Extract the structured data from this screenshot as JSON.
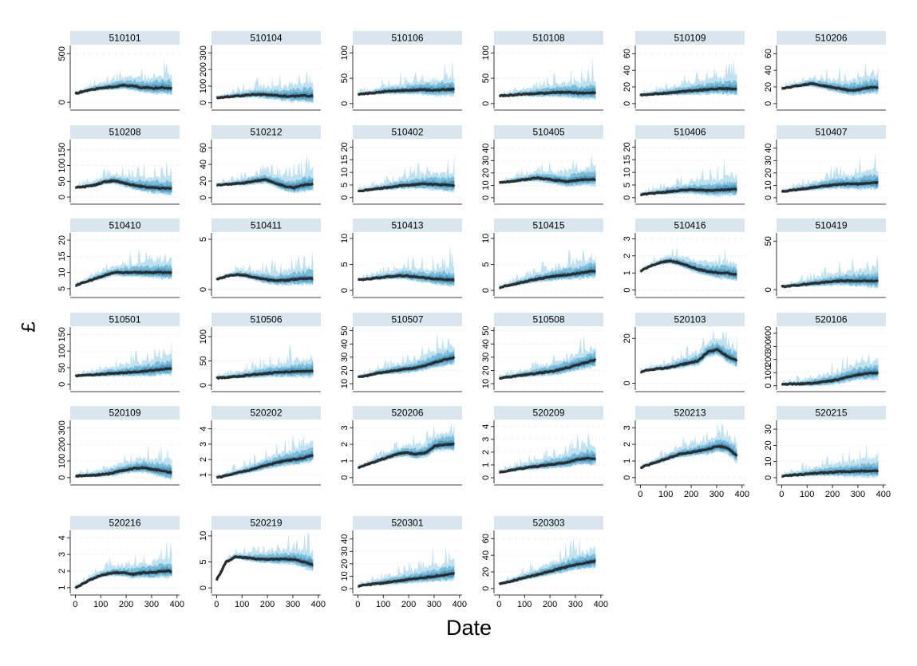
{
  "chart_data": {
    "type": "area",
    "description": "Small-multiple fan charts: dark median band with lighter quantile bands over Date",
    "xlabel": "Date",
    "ylabel": "£",
    "xticks": [
      0,
      100,
      200,
      300,
      400
    ],
    "xlim": [
      -20,
      410
    ],
    "x_data_end": 380,
    "colors": {
      "median": "#2b2b2b",
      "band_inner": "#4c97c0",
      "band_mid": "#78bcd8",
      "band_outer": "#bfe1f0",
      "header": "#d9e6ee"
    },
    "panels": [
      {
        "id": "510101",
        "yticks": [
          0,
          500
        ],
        "ylim": [
          -40,
          560
        ],
        "start": 90,
        "values": [
          90,
          115,
          135,
          150,
          160,
          175,
          165,
          150,
          145,
          150,
          140
        ],
        "tail_x": 345
      },
      {
        "id": "510104",
        "yticks": [
          0,
          100,
          200,
          300
        ],
        "ylim": [
          -20,
          330
        ],
        "start": 30,
        "values": [
          30,
          35,
          40,
          45,
          50,
          48,
          45,
          40,
          40,
          42,
          40
        ],
        "tail_x": 380
      },
      {
        "id": "510106",
        "yticks": [
          0,
          50,
          100
        ],
        "ylim": [
          -5,
          110
        ],
        "start": 18,
        "values": [
          18,
          20,
          22,
          24,
          25,
          26,
          27,
          27,
          26,
          28,
          28
        ],
        "tail_x": 380
      },
      {
        "id": "510108",
        "yticks": [
          0,
          50,
          100
        ],
        "ylim": [
          -5,
          110
        ],
        "start": 15,
        "values": [
          15,
          16,
          18,
          19,
          20,
          21,
          22,
          22,
          21,
          21,
          22
        ],
        "tail_x": 380
      },
      {
        "id": "510109",
        "yticks": [
          0,
          20,
          40,
          60
        ],
        "ylim": [
          -3,
          67
        ],
        "start": 10,
        "values": [
          10,
          11,
          12,
          13,
          14,
          15,
          16,
          17,
          18,
          18,
          18
        ],
        "tail_x": 380
      },
      {
        "id": "510206",
        "yticks": [
          0,
          20,
          40,
          60
        ],
        "ylim": [
          -3,
          67
        ],
        "start": 18,
        "values": [
          18,
          20,
          22,
          24,
          22,
          20,
          18,
          16,
          17,
          19,
          20
        ],
        "tail_x": 380
      },
      {
        "id": "510208",
        "yticks": [
          0,
          50,
          100,
          150
        ],
        "ylim": [
          -10,
          175
        ],
        "start": 30,
        "values": [
          30,
          33,
          38,
          48,
          52,
          45,
          38,
          33,
          30,
          28,
          27
        ],
        "tail_x": 380
      },
      {
        "id": "510212",
        "yticks": [
          0,
          20,
          40,
          60
        ],
        "ylim": [
          -3,
          67
        ],
        "start": 15,
        "values": [
          15,
          16,
          17,
          18,
          20,
          22,
          18,
          14,
          12,
          15,
          17
        ],
        "tail_x": 380
      },
      {
        "id": "510402",
        "yticks": [
          0,
          5,
          10,
          15,
          20
        ],
        "ylim": [
          -1,
          22
        ],
        "start": 2.5,
        "values": [
          2.5,
          3,
          3.5,
          4,
          4.5,
          5,
          5.2,
          5.4,
          5.2,
          5,
          5
        ],
        "tail_x": 380
      },
      {
        "id": "510405",
        "yticks": [
          0,
          10,
          20,
          30,
          40
        ],
        "ylim": [
          -2,
          45
        ],
        "start": 12,
        "values": [
          12,
          13,
          14,
          15,
          16,
          15,
          14,
          13,
          14,
          15,
          15
        ],
        "tail_x": 380
      },
      {
        "id": "510406",
        "yticks": [
          0,
          5,
          10,
          15,
          20
        ],
        "ylim": [
          -1,
          22
        ],
        "start": 1.2,
        "values": [
          1.2,
          1.6,
          2,
          2.4,
          2.8,
          3.2,
          3,
          2.8,
          3,
          3.2,
          3.4
        ],
        "tail_x": 380
      },
      {
        "id": "510407",
        "yticks": [
          0,
          10,
          20,
          30,
          40
        ],
        "ylim": [
          -2,
          45
        ],
        "start": 5,
        "values": [
          5,
          6,
          7,
          8,
          9,
          10,
          11,
          11,
          11,
          12,
          12
        ],
        "tail_x": 380
      },
      {
        "id": "510410",
        "yticks": [
          5,
          10,
          15,
          20
        ],
        "ylim": [
          3.5,
          21.5
        ],
        "start": 6,
        "values": [
          6,
          7,
          8,
          9,
          10,
          10,
          10,
          10,
          10,
          10,
          10
        ],
        "tail_x": 380
      },
      {
        "id": "510411",
        "yticks": [
          0,
          5
        ],
        "ylim": [
          -0.4,
          5.4
        ],
        "start": 1,
        "values": [
          1,
          1.3,
          1.5,
          1.4,
          1.2,
          1.0,
          0.9,
          0.9,
          1.0,
          1.1,
          1.1
        ],
        "tail_x": 380
      },
      {
        "id": "510413",
        "yticks": [
          0,
          5,
          10
        ],
        "ylim": [
          -0.6,
          10.6
        ],
        "start": 2,
        "values": [
          2,
          2.2,
          2.4,
          2.6,
          2.8,
          2.8,
          2.6,
          2.4,
          2.2,
          2.1,
          2.0
        ],
        "tail_x": 380
      },
      {
        "id": "510415",
        "yticks": [
          0,
          5,
          10
        ],
        "ylim": [
          -0.6,
          10.6
        ],
        "start": 0.5,
        "values": [
          0.5,
          1,
          1.4,
          1.8,
          2.2,
          2.5,
          2.8,
          3,
          3.2,
          3.5,
          3.8
        ],
        "tail_x": 380
      },
      {
        "id": "510416",
        "yticks": [
          0,
          1,
          2,
          3
        ],
        "ylim": [
          -0.2,
          3.2
        ],
        "start": 1.1,
        "values": [
          1.1,
          1.4,
          1.6,
          1.7,
          1.6,
          1.4,
          1.2,
          1.1,
          1.0,
          1.0,
          0.9
        ],
        "tail_x": 380
      },
      {
        "id": "510419",
        "yticks": [
          0,
          50
        ],
        "ylim": [
          -4,
          56
        ],
        "start": 3,
        "values": [
          3,
          4,
          5,
          6,
          7,
          8,
          9,
          9,
          9,
          9,
          9
        ],
        "tail_x": 380
      },
      {
        "id": "510501",
        "yticks": [
          0,
          50,
          100,
          150
        ],
        "ylim": [
          -10,
          165
        ],
        "start": 25,
        "values": [
          25,
          27,
          29,
          31,
          33,
          35,
          37,
          39,
          42,
          45,
          48
        ],
        "tail_x": 380
      },
      {
        "id": "510506",
        "yticks": [
          0,
          50,
          100
        ],
        "ylim": [
          -5,
          115
        ],
        "start": 15,
        "values": [
          15,
          16,
          18,
          20,
          22,
          24,
          26,
          27,
          28,
          29,
          30
        ],
        "tail_x": 380
      },
      {
        "id": "510507",
        "yticks": [
          10,
          20,
          30,
          40,
          50
        ],
        "ylim": [
          7,
          51
        ],
        "start": 15,
        "values": [
          15,
          16,
          18,
          19,
          20,
          21,
          22,
          24,
          26,
          28,
          30
        ],
        "tail_x": 380
      },
      {
        "id": "510508",
        "yticks": [
          10,
          20,
          30,
          40,
          50
        ],
        "ylim": [
          7,
          51
        ],
        "start": 14,
        "values": [
          14,
          15,
          16,
          17,
          18,
          19,
          20,
          22,
          24,
          26,
          28
        ],
        "tail_x": 380
      },
      {
        "id": "520103",
        "yticks": [
          0,
          20
        ],
        "ylim": [
          -2,
          24
        ],
        "start": 5,
        "values": [
          5,
          6,
          6.5,
          7,
          8,
          9,
          10,
          14,
          15,
          12,
          10
        ],
        "tail_x": 380
      },
      {
        "id": "520106",
        "yticks": [
          0,
          100,
          200,
          300,
          400
        ],
        "ylim": [
          -15,
          430
        ],
        "start": 10,
        "values": [
          10,
          12,
          14,
          18,
          25,
          35,
          50,
          70,
          85,
          95,
          100
        ],
        "tail_x": 380
      },
      {
        "id": "520109",
        "yticks": [
          0,
          100,
          200,
          300
        ],
        "ylim": [
          -20,
          330
        ],
        "start": 10,
        "values": [
          10,
          12,
          15,
          20,
          30,
          45,
          55,
          60,
          50,
          40,
          30
        ],
        "tail_x": 380
      },
      {
        "id": "520202",
        "yticks": [
          1,
          2,
          3,
          4
        ],
        "ylim": [
          0.6,
          4.4
        ],
        "start": 0.8,
        "values": [
          0.8,
          0.95,
          1.1,
          1.25,
          1.4,
          1.6,
          1.75,
          1.9,
          2.0,
          2.1,
          2.3
        ],
        "tail_x": 380
      },
      {
        "id": "520206",
        "yticks": [
          0,
          1,
          2,
          3
        ],
        "ylim": [
          -0.2,
          3.3
        ],
        "start": 0.6,
        "values": [
          0.6,
          0.8,
          1.0,
          1.2,
          1.4,
          1.5,
          1.4,
          1.5,
          1.9,
          2.0,
          2.0
        ],
        "tail_x": 380
      },
      {
        "id": "520209",
        "yticks": [
          0,
          1,
          2,
          3,
          4
        ],
        "ylim": [
          -0.25,
          4.3
        ],
        "start": 0.4,
        "values": [
          0.4,
          0.55,
          0.7,
          0.8,
          0.9,
          1.0,
          1.1,
          1.2,
          1.4,
          1.5,
          1.5
        ],
        "tail_x": 380
      },
      {
        "id": "520213",
        "yticks": [
          0,
          1,
          2,
          3
        ],
        "ylim": [
          -0.2,
          3.3
        ],
        "start": 0.6,
        "values": [
          0.6,
          0.8,
          1.0,
          1.2,
          1.4,
          1.5,
          1.6,
          1.7,
          1.9,
          1.8,
          1.3
        ],
        "tail_x": 380
      },
      {
        "id": "520215",
        "yticks": [
          0,
          10,
          20,
          30
        ],
        "ylim": [
          -2,
          34
        ],
        "start": 1,
        "values": [
          1,
          1.5,
          2,
          2.5,
          3,
          3.3,
          3.6,
          3.8,
          4,
          4.2,
          4.4
        ],
        "tail_x": 380
      },
      {
        "id": "520216",
        "yticks": [
          1,
          2,
          3,
          4
        ],
        "ylim": [
          0.8,
          4.3
        ],
        "start": 1.0,
        "values": [
          1.0,
          1.3,
          1.6,
          1.8,
          1.9,
          1.9,
          1.8,
          1.9,
          1.9,
          2.0,
          2.0
        ],
        "tail_x": 380
      },
      {
        "id": "520219",
        "yticks": [
          0,
          5,
          10
        ],
        "ylim": [
          -0.6,
          10.6
        ],
        "start": 1.5,
        "values": [
          1.5,
          5,
          6,
          5.8,
          5.6,
          5.5,
          5.5,
          5.5,
          5.5,
          5.0,
          4.5
        ],
        "tail_x": 380
      },
      {
        "id": "520301",
        "yticks": [
          0,
          10,
          20,
          30,
          40
        ],
        "ylim": [
          -2,
          45
        ],
        "start": 2,
        "values": [
          2,
          3,
          4,
          5,
          6,
          7,
          8,
          9,
          10,
          11,
          12
        ],
        "tail_x": 380
      },
      {
        "id": "520303",
        "yticks": [
          0,
          20,
          40,
          60
        ],
        "ylim": [
          -3,
          67
        ],
        "start": 5,
        "values": [
          5,
          8,
          11,
          14,
          17,
          20,
          23,
          26,
          29,
          31,
          33
        ],
        "tail_x": 380
      }
    ]
  }
}
